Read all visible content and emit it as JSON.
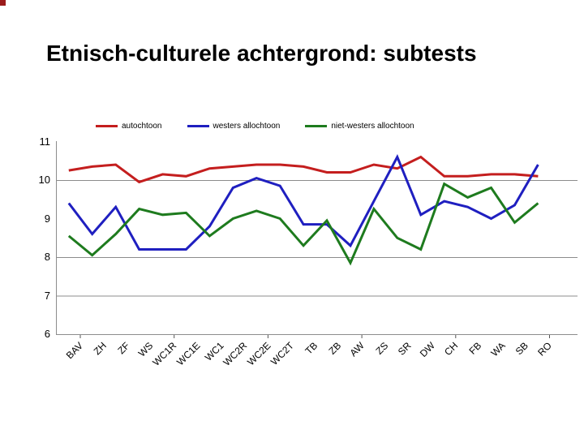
{
  "slide": {
    "title": "Etnisch-culturele achtergrond: subtests"
  },
  "chart_data": {
    "type": "line",
    "title": "Etnisch-culturele achtergrond: subtests",
    "categories": [
      "BAV",
      "ZH",
      "ZF",
      "WS",
      "WC1R",
      "WC1E",
      "WC1",
      "WC2R",
      "WC2E",
      "WC2T",
      "TB",
      "ZB",
      "AW",
      "ZS",
      "SR",
      "DW",
      "CH",
      "FB",
      "WA",
      "SB",
      "RO"
    ],
    "series": [
      {
        "name": "autochtoon",
        "color": "#c41e1e",
        "values": [
          10.25,
          10.35,
          10.4,
          9.95,
          10.15,
          10.1,
          10.3,
          10.35,
          10.4,
          10.4,
          10.35,
          10.2,
          10.2,
          10.4,
          10.3,
          10.6,
          10.1,
          10.1,
          10.15,
          10.15,
          10.1
        ]
      },
      {
        "name": "westers allochtoon",
        "color": "#1f1fc0",
        "values": [
          9.4,
          8.6,
          9.3,
          8.2,
          8.2,
          8.2,
          8.8,
          9.8,
          10.05,
          9.85,
          8.85,
          8.85,
          8.3,
          9.45,
          10.6,
          9.1,
          9.45,
          9.3,
          9.0,
          9.35,
          10.4
        ]
      },
      {
        "name": "niet-westers allochtoon",
        "color": "#1e7b1e",
        "values": [
          8.55,
          8.05,
          8.6,
          9.25,
          9.1,
          9.15,
          8.55,
          9.0,
          9.2,
          9.0,
          8.3,
          8.95,
          7.85,
          9.25,
          8.5,
          8.2,
          9.9,
          9.55,
          9.8,
          8.9,
          9.4
        ]
      }
    ],
    "xlabel": "",
    "ylabel": "",
    "ylim": [
      6,
      11
    ],
    "yticks": [
      6,
      7,
      8,
      9,
      10,
      11
    ],
    "gridlines_at": [
      7,
      8,
      10
    ],
    "legend_position": "top",
    "axis_color": "#8c8c8c"
  }
}
